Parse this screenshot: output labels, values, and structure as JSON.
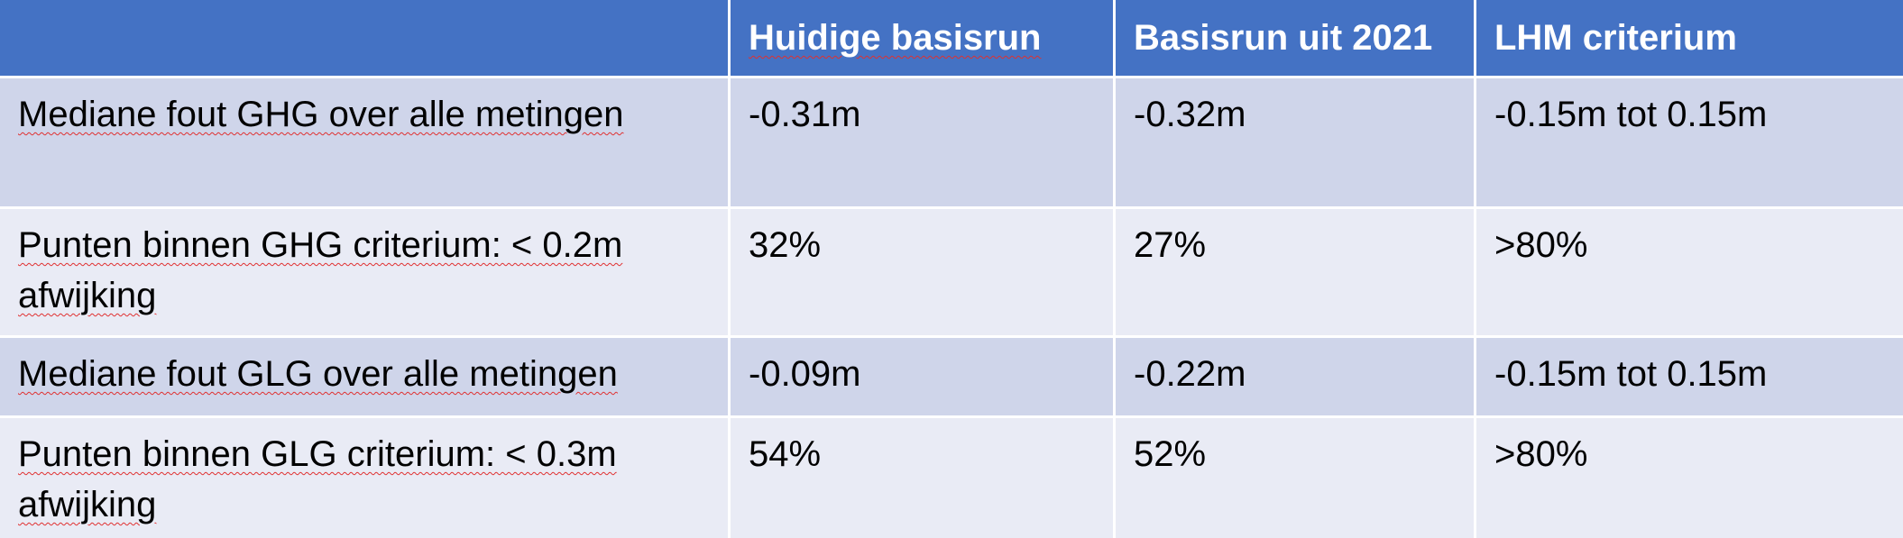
{
  "table": {
    "headers": [
      "",
      "Huidige basisrun",
      "Basisrun uit 2021",
      "LHM criterium"
    ],
    "rows": [
      [
        "Mediane fout GHG over alle metingen",
        "-0.31m",
        "-0.32m",
        "-0.15m tot 0.15m"
      ],
      [
        "Punten binnen GHG criterium: < 0.2m afwijking",
        "32%",
        "27%",
        ">80%"
      ],
      [
        "Mediane fout GLG over alle metingen",
        "-0.09m",
        "-0.22m",
        "-0.15m tot 0.15m"
      ],
      [
        "Punten binnen GLG criterium: < 0.3m afwijking",
        "54%",
        "52%",
        ">80%"
      ]
    ]
  },
  "colors": {
    "header_bg": "#4472c4",
    "row_dark": "#cfd5ea",
    "row_light": "#e9ebf5",
    "spellcheck_underline": "#e03030"
  }
}
